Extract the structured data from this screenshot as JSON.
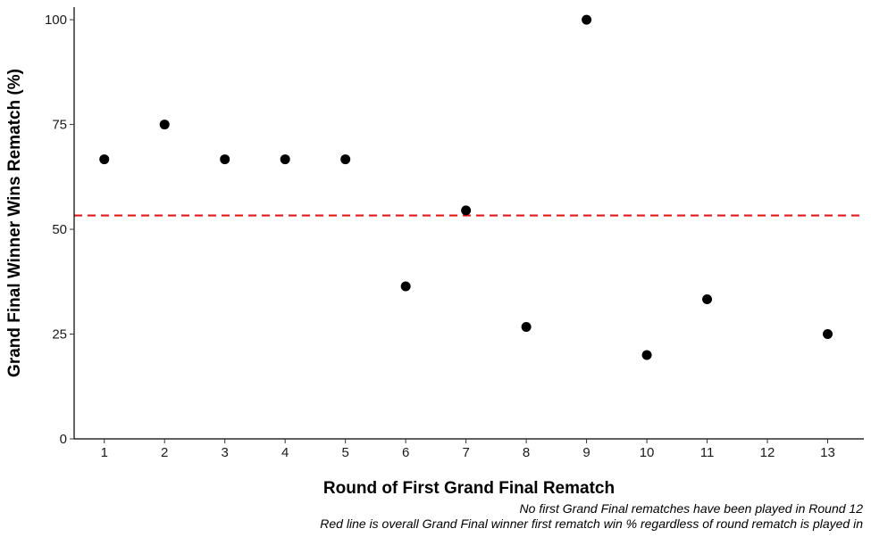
{
  "chart_data": {
    "type": "scatter",
    "xlabel": "Round of First Grand Final Rematch",
    "ylabel": "Grand Final Winner Wins Rematch (%)",
    "x_ticks": [
      1,
      2,
      3,
      4,
      5,
      6,
      7,
      8,
      9,
      10,
      11,
      12,
      13
    ],
    "y_ticks": [
      0,
      25,
      50,
      75,
      100
    ],
    "xlim": [
      0.5,
      13.6
    ],
    "ylim": [
      0,
      103
    ],
    "grid": false,
    "points": [
      {
        "x": 1,
        "y": 66.7
      },
      {
        "x": 2,
        "y": 75.0
      },
      {
        "x": 3,
        "y": 66.7
      },
      {
        "x": 4,
        "y": 66.7
      },
      {
        "x": 5,
        "y": 66.7
      },
      {
        "x": 6,
        "y": 36.4
      },
      {
        "x": 7,
        "y": 54.5
      },
      {
        "x": 8,
        "y": 26.7
      },
      {
        "x": 9,
        "y": 100.0
      },
      {
        "x": 10,
        "y": 20.0
      },
      {
        "x": 11,
        "y": 33.3
      },
      {
        "x": 13,
        "y": 25.0
      }
    ],
    "reference_line": {
      "y": 53.3,
      "color": "#e31a1c",
      "style": "dashed"
    },
    "point_color": "#000000",
    "captions": [
      "No first Grand Final rematches have been played in Round 12",
      "Red line is overall Grand Final winner first rematch win % regardless of round rematch is played in"
    ]
  }
}
